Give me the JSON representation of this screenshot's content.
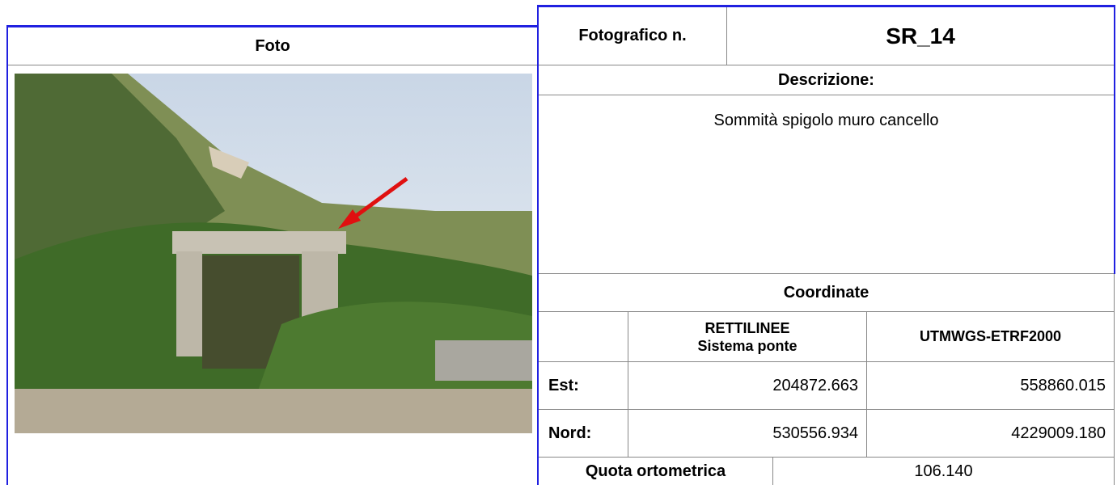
{
  "photo_panel": {
    "header": "Foto"
  },
  "record": {
    "label": "Fotografico n.",
    "id": "SR_14",
    "description_label": "Descrizione:",
    "description": "Sommità spigolo muro cancello",
    "coordinates_label": "Coordinate",
    "columns": [
      "RETTILINEE",
      "Sistema ponte",
      "UTMWGS-ETRF2000"
    ],
    "rows": [
      [
        "Est:",
        "204872.663",
        "558860.015"
      ],
      [
        "Nord:",
        "530556.934",
        "4229009.180"
      ]
    ],
    "quota_label": "Quota ortometrica",
    "quota": "106.140"
  }
}
